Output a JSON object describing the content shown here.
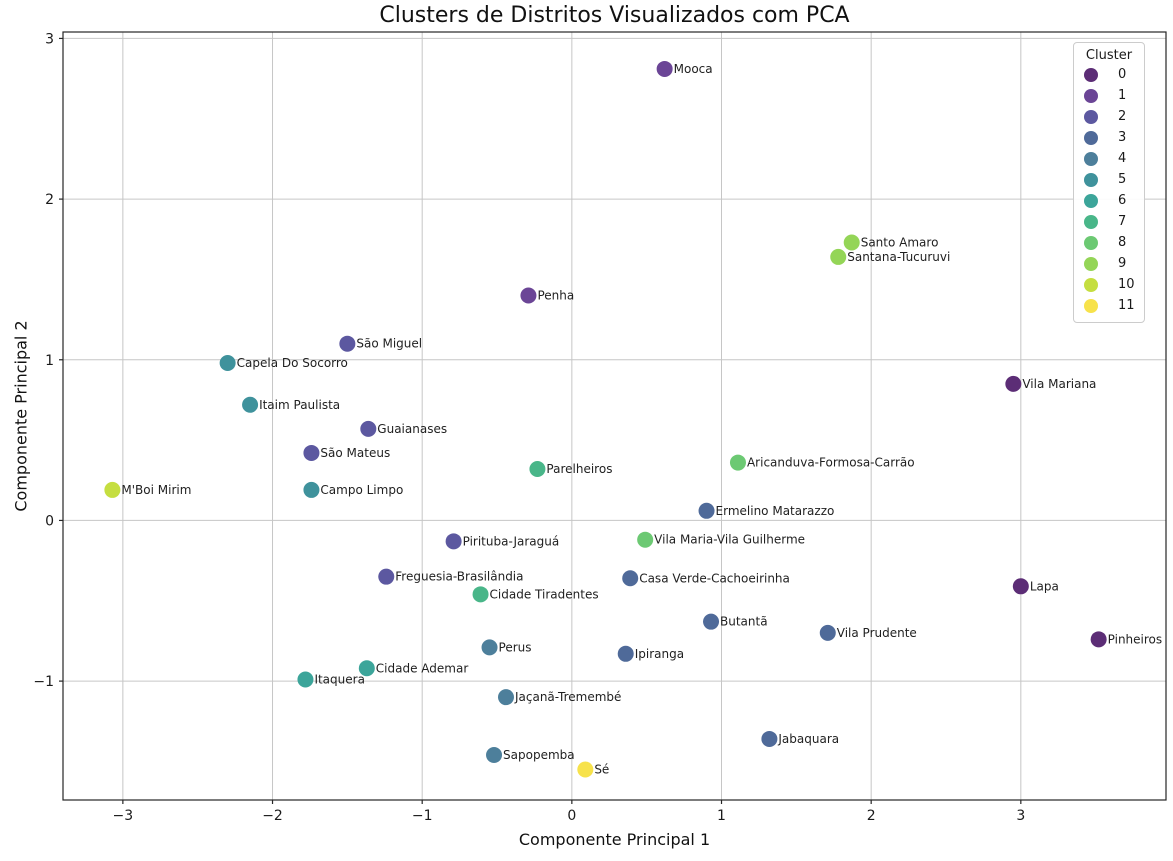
{
  "chart": {
    "title": "Clusters de Distritos Visualizados com PCA",
    "xlabel": "Componente Principal 1",
    "ylabel": "Componente Principal 2"
  },
  "chart_data": {
    "type": "scatter",
    "title": "Clusters de Distritos Visualizados com PCA",
    "xlabel": "Componente Principal 1",
    "ylabel": "Componente Principal 2",
    "xlim": [
      -3.4,
      3.97
    ],
    "ylim": [
      -1.74,
      3.04
    ],
    "grid": true,
    "frame_color": "#262626",
    "grid_color": "#c6c6c6",
    "label_color": "#1f1f1f",
    "marker_radius_px": 8,
    "xticks": [
      {
        "value": -3,
        "label": "−3"
      },
      {
        "value": -2,
        "label": "−2"
      },
      {
        "value": -1,
        "label": "−1"
      },
      {
        "value": 0,
        "label": "0"
      },
      {
        "value": 1,
        "label": "1"
      },
      {
        "value": 2,
        "label": "2"
      },
      {
        "value": 3,
        "label": "3"
      }
    ],
    "yticks": [
      {
        "value": -1,
        "label": "−1"
      },
      {
        "value": 0,
        "label": "0"
      },
      {
        "value": 1,
        "label": "1"
      },
      {
        "value": 2,
        "label": "2"
      },
      {
        "value": 3,
        "label": "3"
      }
    ],
    "legend": {
      "title": "Cluster",
      "position": "upper right",
      "entries": [
        {
          "label": "0",
          "color": "#5c2d76"
        },
        {
          "label": "1",
          "color": "#6b4596"
        },
        {
          "label": "2",
          "color": "#5c58a0"
        },
        {
          "label": "3",
          "color": "#4f6a99"
        },
        {
          "label": "4",
          "color": "#4d7f9b"
        },
        {
          "label": "5",
          "color": "#3f929c"
        },
        {
          "label": "6",
          "color": "#3ca59a"
        },
        {
          "label": "7",
          "color": "#49b689"
        },
        {
          "label": "8",
          "color": "#6cc973"
        },
        {
          "label": "9",
          "color": "#94d557"
        },
        {
          "label": "10",
          "color": "#c5de40"
        },
        {
          "label": "11",
          "color": "#f7e24b"
        }
      ]
    },
    "points": [
      {
        "label": "Mooca",
        "x": 0.62,
        "y": 2.81,
        "cluster": 1
      },
      {
        "label": "Santo Amaro",
        "x": 1.87,
        "y": 1.73,
        "cluster": 9
      },
      {
        "label": "Santana-Tucuruvi",
        "x": 1.78,
        "y": 1.64,
        "cluster": 9
      },
      {
        "label": "Penha",
        "x": -0.29,
        "y": 1.4,
        "cluster": 1
      },
      {
        "label": "São Miguel",
        "x": -1.5,
        "y": 1.1,
        "cluster": 2
      },
      {
        "label": "Capela Do Socorro",
        "x": -2.3,
        "y": 0.98,
        "cluster": 5
      },
      {
        "label": "Vila Mariana",
        "x": 2.95,
        "y": 0.85,
        "cluster": 0
      },
      {
        "label": "Itaim Paulista",
        "x": -2.15,
        "y": 0.72,
        "cluster": 5
      },
      {
        "label": "Guaianases",
        "x": -1.36,
        "y": 0.57,
        "cluster": 2
      },
      {
        "label": "São Mateus",
        "x": -1.74,
        "y": 0.42,
        "cluster": 2
      },
      {
        "label": "Aricanduva-Formosa-Carrão",
        "x": 1.11,
        "y": 0.36,
        "cluster": 8
      },
      {
        "label": "Parelheiros",
        "x": -0.23,
        "y": 0.32,
        "cluster": 7
      },
      {
        "label": "M'Boi Mirim",
        "x": -3.07,
        "y": 0.19,
        "cluster": 10
      },
      {
        "label": "Campo Limpo",
        "x": -1.74,
        "y": 0.19,
        "cluster": 5
      },
      {
        "label": "Ermelino Matarazzo",
        "x": 0.9,
        "y": 0.06,
        "cluster": 3
      },
      {
        "label": "Vila Maria-Vila Guilherme",
        "x": 0.49,
        "y": -0.12,
        "cluster": 8
      },
      {
        "label": "Pirituba-Jaraguá",
        "x": -0.79,
        "y": -0.13,
        "cluster": 2
      },
      {
        "label": "Freguesia-Brasilândia",
        "x": -1.24,
        "y": -0.35,
        "cluster": 2
      },
      {
        "label": "Casa Verde-Cachoeirinha",
        "x": 0.39,
        "y": -0.36,
        "cluster": 3
      },
      {
        "label": "Cidade Tiradentes",
        "x": -0.61,
        "y": -0.46,
        "cluster": 7
      },
      {
        "label": "Lapa",
        "x": 3.0,
        "y": -0.41,
        "cluster": 0
      },
      {
        "label": "Butantã",
        "x": 0.93,
        "y": -0.63,
        "cluster": 3
      },
      {
        "label": "Vila Prudente",
        "x": 1.71,
        "y": -0.7,
        "cluster": 3
      },
      {
        "label": "Pinheiros",
        "x": 3.52,
        "y": -0.74,
        "cluster": 0
      },
      {
        "label": "Perus",
        "x": -0.55,
        "y": -0.79,
        "cluster": 4
      },
      {
        "label": "Ipiranga",
        "x": 0.36,
        "y": -0.83,
        "cluster": 3
      },
      {
        "label": "Cidade Ademar",
        "x": -1.37,
        "y": -0.92,
        "cluster": 6
      },
      {
        "label": "Itaquera",
        "x": -1.78,
        "y": -0.99,
        "cluster": 6
      },
      {
        "label": "Jaçanã-Tremembé",
        "x": -0.44,
        "y": -1.1,
        "cluster": 4
      },
      {
        "label": "Jabaquara",
        "x": 1.32,
        "y": -1.36,
        "cluster": 3
      },
      {
        "label": "Sapopemba",
        "x": -0.52,
        "y": -1.46,
        "cluster": 4
      },
      {
        "label": "Sé",
        "x": 0.09,
        "y": -1.55,
        "cluster": 11
      }
    ]
  }
}
